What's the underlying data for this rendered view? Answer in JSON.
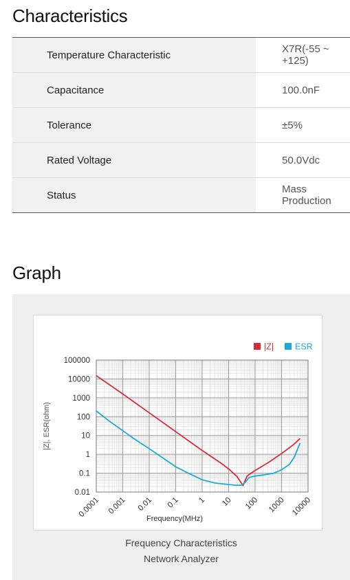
{
  "characteristics": {
    "heading": "Characteristics",
    "rows": [
      {
        "label": "Temperature Characteristic",
        "value": "X7R(-55 ~ +125)"
      },
      {
        "label": "Capacitance",
        "value": "100.0nF"
      },
      {
        "label": "Tolerance",
        "value": "±5%"
      },
      {
        "label": "Rated Voltage",
        "value": "50.0Vdc"
      },
      {
        "label": "Status",
        "value": "Mass Production"
      }
    ]
  },
  "graph": {
    "heading": "Graph",
    "caption_line1": "Frequency Characteristics",
    "caption_line2": "Network Analyzer"
  },
  "chart_data": {
    "type": "line",
    "title": "",
    "xlabel": "Frequency(MHz)",
    "ylabel": "|Z|, ESR(ohm)",
    "x_scale": "log",
    "y_scale": "log",
    "xlim": [
      0.0001,
      10000
    ],
    "ylim": [
      0.01,
      100000
    ],
    "x_tick_labels": [
      "0.0001",
      "0.001",
      "0.01",
      "0.1",
      "1",
      "10",
      "100",
      "1000",
      "10000"
    ],
    "y_tick_labels": [
      "100000",
      "10000",
      "1000",
      "100",
      "10",
      "1",
      "0.1",
      "0.01"
    ],
    "grid": true,
    "legend_position": "top-right",
    "series": [
      {
        "name": "|Z|",
        "color": "#d92b3a",
        "points": [
          [
            0.0001,
            15000
          ],
          [
            0.001,
            1600
          ],
          [
            0.01,
            160
          ],
          [
            0.1,
            16
          ],
          [
            1,
            1.6
          ],
          [
            5,
            0.35
          ],
          [
            10,
            0.17
          ],
          [
            20,
            0.07
          ],
          [
            30,
            0.03
          ],
          [
            35,
            0.022
          ],
          [
            40,
            0.035
          ],
          [
            50,
            0.07
          ],
          [
            70,
            0.1
          ],
          [
            100,
            0.14
          ],
          [
            300,
            0.35
          ],
          [
            1000,
            1.1
          ],
          [
            3000,
            3.5
          ],
          [
            5000,
            7
          ]
        ]
      },
      {
        "name": "ESR",
        "color": "#1ba9d6",
        "points": [
          [
            0.0001,
            200
          ],
          [
            0.0003,
            60
          ],
          [
            0.001,
            18
          ],
          [
            0.003,
            6
          ],
          [
            0.01,
            2
          ],
          [
            0.03,
            0.7
          ],
          [
            0.1,
            0.22
          ],
          [
            0.3,
            0.1
          ],
          [
            1,
            0.045
          ],
          [
            3,
            0.03
          ],
          [
            10,
            0.025
          ],
          [
            20,
            0.023
          ],
          [
            30,
            0.023
          ],
          [
            40,
            0.03
          ],
          [
            60,
            0.06
          ],
          [
            100,
            0.07
          ],
          [
            200,
            0.08
          ],
          [
            500,
            0.1
          ],
          [
            1000,
            0.15
          ],
          [
            2000,
            0.3
          ],
          [
            3000,
            0.7
          ],
          [
            5000,
            4
          ]
        ]
      }
    ]
  }
}
